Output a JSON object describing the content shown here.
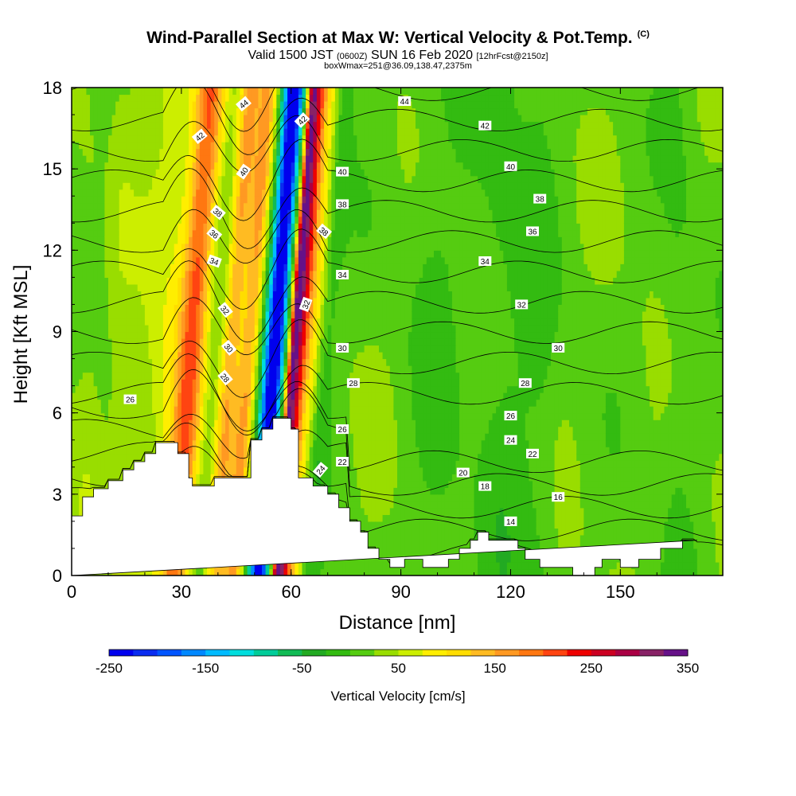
{
  "header": {
    "title": "Wind-Parallel Section at Max W: Vertical Velocity & Pot.Temp.",
    "copyright": "(C)",
    "valid_prefix": "Valid 1500 JST",
    "valid_utc": "(0600Z)",
    "valid_date": "SUN 16 Feb 2020",
    "forecast": "[12hrFcst@2150z]",
    "box_info": "boxWmax=251@36.09,138.47,2375m"
  },
  "chart_data": {
    "type": "heatmap",
    "xlabel": "Distance [nm]",
    "ylabel": "Height [Kft MSL]",
    "xlim": [
      0,
      178
    ],
    "ylim": [
      0,
      18
    ],
    "x_ticks": [
      0,
      30,
      60,
      90,
      120,
      150
    ],
    "y_ticks": [
      0,
      3,
      6,
      9,
      12,
      15,
      18
    ],
    "colorbar": {
      "label": "Vertical Velocity [cm/s]",
      "ticks": [
        -250,
        -150,
        -50,
        50,
        150,
        250,
        350
      ],
      "levels": [
        -250,
        -225,
        -200,
        -175,
        -150,
        -125,
        -100,
        -75,
        -50,
        -25,
        0,
        25,
        50,
        75,
        100,
        125,
        150,
        175,
        200,
        225,
        250,
        275,
        300,
        325,
        350
      ],
      "colors": [
        "#0000ee",
        "#0a2cf0",
        "#0055ff",
        "#0088ff",
        "#00bbff",
        "#00dddd",
        "#00cc99",
        "#11bb55",
        "#22aa22",
        "#33bb11",
        "#55cc11",
        "#99dd00",
        "#ccee00",
        "#ffee00",
        "#ffdd00",
        "#ffbb22",
        "#ff9922",
        "#ff7711",
        "#ff4411",
        "#ee0000",
        "#cc0022",
        "#aa0044",
        "#882266",
        "#661188"
      ]
    },
    "terrain_profile": {
      "x": [
        0,
        3,
        3,
        6,
        6,
        10,
        10,
        14,
        14,
        17,
        17,
        20,
        20,
        23,
        23,
        29,
        29,
        32,
        32,
        33,
        33,
        39,
        39,
        49,
        49,
        52,
        52,
        55,
        55,
        60,
        60,
        62,
        62,
        66,
        66,
        70,
        70,
        73,
        73,
        76,
        76,
        79,
        79,
        81,
        81,
        84,
        84,
        87,
        87,
        91,
        91,
        96,
        96,
        103,
        103,
        106,
        106,
        109,
        109,
        111,
        111,
        114,
        114,
        122,
        122,
        124,
        124,
        128,
        128,
        137,
        137,
        143,
        143,
        145,
        145,
        150,
        150,
        155,
        155,
        161,
        161,
        167,
        167,
        171,
        171,
        178
      ],
      "y": [
        2.2,
        2.2,
        2.9,
        2.9,
        3.2,
        3.2,
        3.5,
        3.5,
        3.9,
        3.9,
        4.2,
        4.2,
        4.5,
        4.5,
        4.9,
        4.9,
        4.5,
        4.5,
        3.6,
        3.6,
        3.3,
        3.3,
        3.6,
        3.6,
        5.0,
        5.0,
        5.4,
        5.4,
        5.8,
        5.8,
        5.4,
        5.4,
        3.6,
        3.6,
        3.3,
        3.3,
        3.0,
        3.0,
        2.5,
        2.5,
        2.0,
        2.0,
        1.6,
        1.6,
        1.0,
        1.0,
        0.6,
        0.6,
        0.3,
        0.3,
        0.6,
        0.6,
        0.3,
        0.3,
        0.6,
        0.6,
        1.0,
        1.0,
        1.3,
        1.3,
        1.6,
        1.6,
        1.3,
        1.3,
        1.0,
        1.0,
        0.6,
        0.6,
        0.3,
        0.3,
        0.0,
        0.0,
        0.3,
        0.3,
        0.6,
        0.6,
        0.3,
        0.3,
        0.6,
        0.6,
        1.0,
        1.0,
        1.3,
        1.3
      ]
    },
    "w_bands": [
      {
        "x": 28,
        "w": 18,
        "v": 60
      },
      {
        "x": 33,
        "w": 3.5,
        "v": 130
      },
      {
        "x": 40,
        "w": 3.0,
        "v": -45
      },
      {
        "x": 44,
        "w": 3.0,
        "v": 110
      },
      {
        "x": 49,
        "w": 2.5,
        "v": 120
      },
      {
        "x": 54,
        "w": 2.0,
        "v": -140
      },
      {
        "x": 56,
        "w": 1.5,
        "v": -245
      },
      {
        "x": 58,
        "w": 2.0,
        "v": -120
      },
      {
        "x": 61,
        "w": 1.5,
        "v": 250
      },
      {
        "x": 63,
        "w": 2.0,
        "v": 180
      },
      {
        "x": 66,
        "w": 2.5,
        "v": 70
      },
      {
        "x": 70,
        "w": 3.0,
        "v": -30
      },
      {
        "x": 19,
        "w": 6,
        "v": -20
      },
      {
        "x": 9,
        "w": 3,
        "v": -15
      },
      {
        "x": 100,
        "w": 8,
        "v": -20
      },
      {
        "x": 118,
        "w": 7,
        "v": -25
      },
      {
        "x": 128,
        "w": 5,
        "v": -20
      },
      {
        "x": 166,
        "w": 5,
        "v": -15
      }
    ],
    "theta_contours": [
      14,
      16,
      18,
      20,
      22,
      24,
      26,
      28,
      30,
      32,
      34,
      36,
      38,
      40,
      42,
      44
    ],
    "contour_labels": [
      {
        "t": "44",
        "x": 47,
        "y": 17.4,
        "r": -40
      },
      {
        "t": "42",
        "x": 35,
        "y": 16.2,
        "r": -40
      },
      {
        "t": "40",
        "x": 47,
        "y": 14.9,
        "r": -55
      },
      {
        "t": "38",
        "x": 40,
        "y": 13.4,
        "r": 40
      },
      {
        "t": "36",
        "x": 39,
        "y": 12.6,
        "r": 40
      },
      {
        "t": "34",
        "x": 39,
        "y": 11.6,
        "r": 20
      },
      {
        "t": "32",
        "x": 42,
        "y": 9.8,
        "r": 50
      },
      {
        "t": "30",
        "x": 43,
        "y": 8.4,
        "r": 50
      },
      {
        "t": "28",
        "x": 42,
        "y": 7.3,
        "r": 50
      },
      {
        "t": "26",
        "x": 16,
        "y": 6.5,
        "r": 0
      },
      {
        "t": "42",
        "x": 63,
        "y": 16.8,
        "r": -45
      },
      {
        "t": "38",
        "x": 69,
        "y": 12.7,
        "r": 40
      },
      {
        "t": "32",
        "x": 64,
        "y": 10.0,
        "r": -70
      },
      {
        "t": "24",
        "x": 68,
        "y": 3.9,
        "r": -50
      },
      {
        "t": "44",
        "x": 91,
        "y": 17.5,
        "r": 0
      },
      {
        "t": "42",
        "x": 113,
        "y": 16.6,
        "r": 0
      },
      {
        "t": "40",
        "x": 74,
        "y": 14.9,
        "r": 0
      },
      {
        "t": "38",
        "x": 74,
        "y": 13.7,
        "r": 0
      },
      {
        "t": "34",
        "x": 74,
        "y": 11.1,
        "r": 0
      },
      {
        "t": "30",
        "x": 74,
        "y": 8.4,
        "r": 0
      },
      {
        "t": "28",
        "x": 77,
        "y": 7.1,
        "r": 0
      },
      {
        "t": "26",
        "x": 74,
        "y": 5.4,
        "r": 0
      },
      {
        "t": "22",
        "x": 74,
        "y": 4.2,
        "r": 0
      },
      {
        "t": "40",
        "x": 120,
        "y": 15.1,
        "r": 0
      },
      {
        "t": "38",
        "x": 128,
        "y": 13.9,
        "r": 0
      },
      {
        "t": "36",
        "x": 126,
        "y": 12.7,
        "r": 0
      },
      {
        "t": "34",
        "x": 113,
        "y": 11.6,
        "r": 0
      },
      {
        "t": "32",
        "x": 123,
        "y": 10.0,
        "r": 0
      },
      {
        "t": "30",
        "x": 133,
        "y": 8.4,
        "r": 0
      },
      {
        "t": "28",
        "x": 124,
        "y": 7.1,
        "r": 0
      },
      {
        "t": "26",
        "x": 120,
        "y": 5.9,
        "r": 0
      },
      {
        "t": "24",
        "x": 120,
        "y": 5.0,
        "r": 0
      },
      {
        "t": "22",
        "x": 126,
        "y": 4.5,
        "r": 0
      },
      {
        "t": "20",
        "x": 107,
        "y": 3.8,
        "r": 0
      },
      {
        "t": "18",
        "x": 113,
        "y": 3.3,
        "r": 0
      },
      {
        "t": "16",
        "x": 133,
        "y": 2.9,
        "r": 0
      },
      {
        "t": "14",
        "x": 120,
        "y": 2.0,
        "r": 0
      }
    ]
  }
}
